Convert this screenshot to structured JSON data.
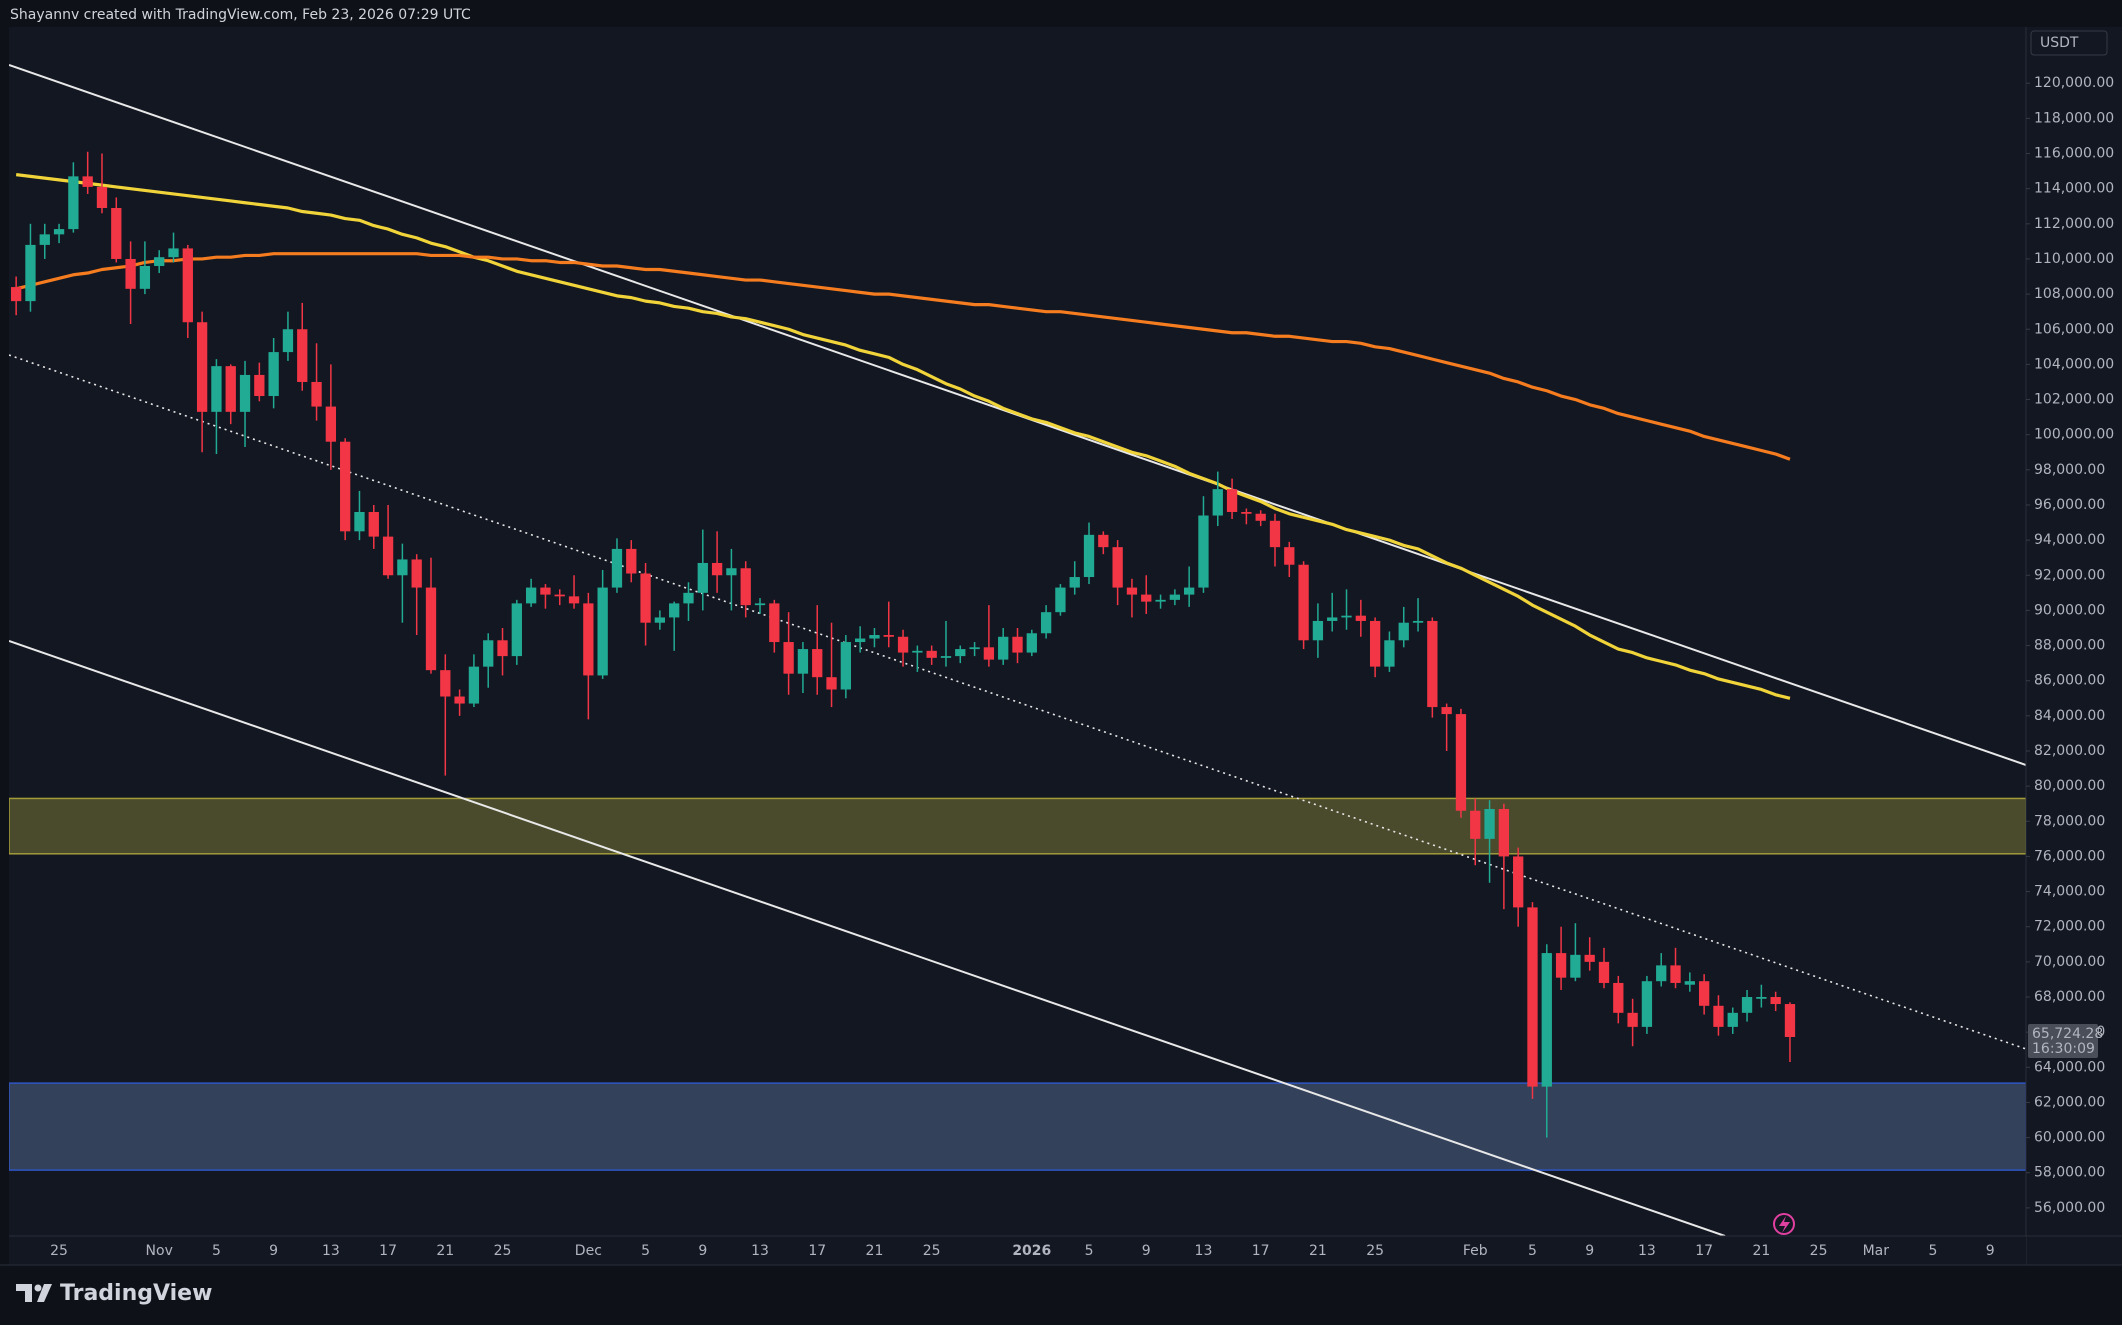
{
  "header": {
    "text": "Shayannv created with TradingView.com, Feb 23, 2026 07:29 UTC"
  },
  "footer": {
    "brand": "TradingView"
  },
  "chart_data": {
    "type": "candlestick",
    "currency": "USDT",
    "up_color": "#22ab94",
    "down_color": "#f23645",
    "grid": false,
    "categories": [
      null,
      null,
      null,
      "25",
      null,
      null,
      null,
      null,
      null,
      null,
      "Nov",
      null,
      null,
      null,
      "5",
      null,
      null,
      null,
      "9",
      null,
      null,
      null,
      "13",
      null,
      null,
      null,
      "17",
      null,
      null,
      null,
      "21",
      null,
      null,
      null,
      "25",
      null,
      null,
      null,
      null,
      null,
      "Dec",
      null,
      null,
      null,
      "5",
      null,
      null,
      null,
      "9",
      null,
      null,
      null,
      "13",
      null,
      null,
      null,
      "17",
      null,
      null,
      null,
      "21",
      null,
      null,
      null,
      "25",
      null,
      null,
      null,
      null,
      null,
      null,
      "2026",
      null,
      null,
      null,
      "5",
      null,
      null,
      null,
      "9",
      null,
      null,
      null,
      "13",
      null,
      null,
      null,
      "17",
      null,
      null,
      null,
      "21",
      null,
      null,
      null,
      "25",
      null,
      null,
      null,
      null,
      null,
      null,
      "Feb",
      null,
      null,
      null,
      "5",
      null,
      null,
      null,
      "9",
      null,
      null,
      null,
      "13",
      null,
      null,
      null,
      "17",
      null,
      null,
      null,
      "21",
      null,
      null,
      null,
      "25",
      null,
      null,
      null,
      "Mar",
      null,
      null,
      null,
      "5",
      null,
      null,
      null,
      "9",
      null,
      null
    ],
    "open": [
      108400,
      107600,
      110800,
      111400,
      111700,
      114700,
      114100,
      112900,
      110000,
      108300,
      109600,
      110100,
      110600,
      106400,
      101300,
      103900,
      101300,
      103400,
      102200,
      104700,
      106000,
      103000,
      101600,
      99600,
      94500,
      95600,
      94200,
      92000,
      92900,
      91300,
      86600,
      85100,
      84700,
      86800,
      88300,
      87400,
      90400,
      91300,
      90900,
      90800,
      90400,
      86300,
      91300,
      93500,
      92100,
      89300,
      89600,
      90400,
      91000,
      92700,
      92000,
      92400,
      90300,
      90400,
      88200,
      86400,
      87800,
      86200,
      85500,
      88200,
      88400,
      88600,
      88500,
      87600,
      87700,
      87300,
      87400,
      87800,
      87900,
      87200,
      88500,
      87600,
      88700,
      89900,
      91300,
      91900,
      94300,
      93600,
      91300,
      90900,
      90500,
      90600,
      90900,
      91300,
      95400,
      96900,
      95600,
      95500,
      95100,
      93600,
      92600,
      88300,
      89400,
      89600,
      89700,
      89400,
      86800,
      88300,
      89300,
      89400,
      84500,
      84100,
      78600,
      77000,
      78700,
      76000,
      73100,
      62900,
      70500,
      69100,
      70400,
      70000,
      68800,
      67100,
      66300,
      68900,
      69800,
      68700,
      68900,
      67500,
      66300,
      67100,
      67900,
      68000,
      67600,
      null,
      null,
      null,
      null,
      null,
      null,
      null,
      null,
      null,
      null,
      null,
      null,
      null,
      null,
      null,
      null
    ],
    "high": [
      109000,
      112000,
      112000,
      112000,
      115500,
      116100,
      116000,
      113500,
      111000,
      111000,
      110500,
      111500,
      110800,
      107000,
      104300,
      104000,
      104200,
      104100,
      105500,
      107000,
      107500,
      105200,
      104000,
      99800,
      96800,
      96000,
      96000,
      93800,
      93200,
      93000,
      87500,
      85500,
      87500,
      88700,
      89000,
      90600,
      91800,
      91500,
      91200,
      92000,
      91000,
      92300,
      94100,
      94000,
      92700,
      90000,
      90500,
      91600,
      94600,
      94500,
      93500,
      92800,
      90700,
      90600,
      89900,
      88200,
      90300,
      89300,
      88600,
      89100,
      89000,
      90500,
      88900,
      88000,
      88000,
      89400,
      88000,
      88200,
      90300,
      89000,
      89000,
      88900,
      90300,
      91500,
      92800,
      95000,
      94500,
      94000,
      91800,
      92000,
      90900,
      91200,
      92500,
      96500,
      97900,
      97500,
      95800,
      95700,
      95500,
      93900,
      92800,
      90400,
      91000,
      91200,
      90600,
      89600,
      88800,
      90200,
      90700,
      89600,
      84700,
      84400,
      79300,
      79200,
      79000,
      76500,
      73400,
      71000,
      72000,
      72200,
      71400,
      70800,
      69200,
      67900,
      69200,
      70500,
      70800,
      69400,
      69300,
      68100,
      67400,
      68400,
      68700,
      68300,
      67700,
      null,
      null,
      null,
      null,
      null,
      null,
      null,
      null,
      null,
      null,
      null,
      null,
      null,
      null,
      null,
      null
    ],
    "low": [
      106800,
      107000,
      110000,
      110900,
      111500,
      113700,
      112600,
      109800,
      106300,
      108000,
      109200,
      109800,
      105500,
      99000,
      98900,
      100600,
      99300,
      101900,
      101500,
      104200,
      102500,
      100800,
      98000,
      94000,
      94000,
      93500,
      91800,
      89300,
      88600,
      86400,
      80600,
      84000,
      84500,
      85600,
      86300,
      86900,
      90200,
      90100,
      90300,
      90100,
      83800,
      86100,
      91000,
      91600,
      88000,
      88900,
      87700,
      89400,
      90000,
      91000,
      90000,
      89600,
      89800,
      87600,
      85200,
      85300,
      85200,
      84500,
      85000,
      87600,
      87900,
      87900,
      86800,
      86500,
      86900,
      86800,
      87000,
      87400,
      86800,
      86900,
      87000,
      87400,
      88400,
      89700,
      90900,
      91500,
      93200,
      90300,
      89600,
      89800,
      90100,
      90300,
      90200,
      91000,
      94800,
      95200,
      94900,
      94800,
      92500,
      91900,
      87800,
      87300,
      88800,
      88900,
      88500,
      86200,
      86500,
      87900,
      88800,
      83900,
      82000,
      78200,
      75500,
      74500,
      73000,
      72000,
      62200,
      60000,
      68400,
      68900,
      69500,
      68500,
      66500,
      65200,
      65900,
      68600,
      68500,
      68300,
      67000,
      65800,
      65900,
      66600,
      67400,
      67200,
      64300,
      null,
      null,
      null,
      null,
      null,
      null,
      null,
      null,
      null,
      null,
      null,
      null,
      null,
      null,
      null,
      null
    ],
    "close": [
      107600,
      110800,
      111400,
      111700,
      114700,
      114100,
      112900,
      110000,
      108300,
      109600,
      110100,
      110600,
      106400,
      101300,
      103900,
      101300,
      103400,
      102200,
      104700,
      106000,
      103000,
      101600,
      99600,
      94500,
      95600,
      94200,
      92000,
      92900,
      91300,
      86600,
      85100,
      84700,
      86800,
      88300,
      87400,
      90400,
      91300,
      90900,
      90800,
      90400,
      86300,
      91300,
      93500,
      92100,
      89300,
      89600,
      90400,
      91000,
      92700,
      92000,
      92400,
      90300,
      90400,
      88200,
      86400,
      87800,
      86200,
      85500,
      88200,
      88400,
      88600,
      88500,
      87600,
      87700,
      87300,
      87400,
      87800,
      87900,
      87200,
      88500,
      87600,
      88700,
      89900,
      91300,
      91900,
      94300,
      93600,
      91300,
      90900,
      90500,
      90600,
      90900,
      91300,
      95400,
      96900,
      95600,
      95500,
      95100,
      93600,
      92600,
      88300,
      89400,
      89600,
      89700,
      89400,
      86800,
      88300,
      89300,
      89400,
      84500,
      84100,
      78600,
      77000,
      78700,
      76000,
      73100,
      62900,
      70500,
      69100,
      70400,
      70000,
      68800,
      67100,
      66300,
      68900,
      69800,
      68800,
      68900,
      67500,
      66300,
      67100,
      68000,
      68000,
      67600,
      65724.28,
      null,
      null,
      null,
      null,
      null,
      null,
      null,
      null,
      null,
      null,
      null,
      null,
      null,
      null,
      null,
      null
    ],
    "overlays": [
      {
        "color": "#f0d43a",
        "values": [
          114800,
          114700,
          114600,
          114500,
          114400,
          114300,
          114200,
          114100,
          114000,
          113900,
          113800,
          113700,
          113600,
          113500,
          113400,
          113300,
          113200,
          113100,
          113000,
          112900,
          112700,
          112600,
          112500,
          112300,
          112200,
          111900,
          111700,
          111400,
          111200,
          110900,
          110700,
          110400,
          110100,
          109900,
          109600,
          109300,
          109100,
          108900,
          108700,
          108500,
          108300,
          108100,
          107900,
          107800,
          107600,
          107500,
          107300,
          107200,
          107000,
          106900,
          106700,
          106600,
          106400,
          106200,
          106000,
          105700,
          105500,
          105300,
          105100,
          104800,
          104600,
          104400,
          104000,
          103700,
          103300,
          102900,
          102600,
          102200,
          101900,
          101500,
          101200,
          100900,
          100700,
          100400,
          100100,
          99900,
          99600,
          99300,
          99000,
          98800,
          98500,
          98200,
          97800,
          97500,
          97200,
          96800,
          96500,
          96200,
          95800,
          95500,
          95300,
          95100,
          94900,
          94600,
          94400,
          94200,
          94000,
          93700,
          93500,
          93100,
          92700,
          92400,
          92000,
          91600,
          91200,
          90800,
          90300,
          89900,
          89500,
          89100,
          88600,
          88200,
          87800,
          87600,
          87300,
          87100,
          86900,
          86600,
          86400,
          86100,
          85900,
          85700,
          85500,
          85200,
          85000,
          null,
          null,
          null,
          null,
          null,
          null,
          null,
          null,
          null,
          null,
          null,
          null,
          null,
          null,
          null,
          null
        ]
      },
      {
        "color": "#f57c1f",
        "values": [
          108300,
          108500,
          108700,
          108900,
          109100,
          109200,
          109400,
          109500,
          109600,
          109800,
          109900,
          109900,
          110000,
          110000,
          110100,
          110100,
          110200,
          110200,
          110300,
          110300,
          110300,
          110300,
          110300,
          110300,
          110300,
          110300,
          110300,
          110300,
          110300,
          110200,
          110200,
          110200,
          110100,
          110100,
          110000,
          110000,
          109900,
          109900,
          109800,
          109800,
          109700,
          109600,
          109600,
          109500,
          109400,
          109400,
          109300,
          109200,
          109100,
          109000,
          108900,
          108800,
          108800,
          108700,
          108600,
          108500,
          108400,
          108300,
          108200,
          108100,
          108000,
          108000,
          107900,
          107800,
          107700,
          107600,
          107500,
          107400,
          107400,
          107300,
          107200,
          107100,
          107000,
          107000,
          106900,
          106800,
          106700,
          106600,
          106500,
          106400,
          106300,
          106200,
          106100,
          106000,
          105900,
          105800,
          105800,
          105700,
          105600,
          105600,
          105500,
          105400,
          105300,
          105300,
          105200,
          105000,
          104900,
          104700,
          104500,
          104300,
          104100,
          103900,
          103700,
          103500,
          103200,
          103000,
          102700,
          102500,
          102200,
          102000,
          101700,
          101500,
          101200,
          101000,
          100800,
          100600,
          100400,
          100200,
          99900,
          99700,
          99500,
          99300,
          99100,
          98900,
          98600,
          null,
          null,
          null,
          null,
          null,
          null,
          null,
          null,
          null,
          null,
          null,
          null,
          null,
          null,
          null,
          null
        ]
      }
    ],
    "zones": [
      {
        "low": 76150,
        "high": 79300,
        "color": "#4a4a2c",
        "border": "#a39b3a"
      },
      {
        "low": 58150,
        "high": 63100,
        "color": "#34415b",
        "border": "#2f55c4"
      }
    ],
    "last_price": {
      "value": 65724.28,
      "label": "65,724.28"
    },
    "countdown": "16:30:09",
    "ylim": [
      54400,
      123200
    ],
    "yticks": [
      {
        "value": 56000,
        "label": "56,000.00"
      },
      {
        "value": 58000,
        "label": "58,000.00"
      },
      {
        "value": 60000,
        "label": "60,000.00"
      },
      {
        "value": 62000,
        "label": "62,000.00"
      },
      {
        "value": 64000,
        "label": "64,000.00"
      },
      {
        "value": 66000,
        "label": "66,000.00"
      },
      {
        "value": 68000,
        "label": "68,000.00"
      },
      {
        "value": 70000,
        "label": "70,000.00"
      },
      {
        "value": 72000,
        "label": "72,000.00"
      },
      {
        "value": 74000,
        "label": "74,000.00"
      },
      {
        "value": 76000,
        "label": "76,000.00"
      },
      {
        "value": 78000,
        "label": "78,000.00"
      },
      {
        "value": 80000,
        "label": "80,000.00"
      },
      {
        "value": 82000,
        "label": "82,000.00"
      },
      {
        "value": 84000,
        "label": "84,000.00"
      },
      {
        "value": 86000,
        "label": "86,000.00"
      },
      {
        "value": 88000,
        "label": "88,000.00"
      },
      {
        "value": 90000,
        "label": "90,000.00"
      },
      {
        "value": 92000,
        "label": "92,000.00"
      },
      {
        "value": 94000,
        "label": "94,000.00"
      },
      {
        "value": 96000,
        "label": "96,000.00"
      },
      {
        "value": 98000,
        "label": "98,000.00"
      },
      {
        "value": 100000,
        "label": "100,000.00"
      },
      {
        "value": 102000,
        "label": "102,000.00"
      },
      {
        "value": 104000,
        "label": "104,000.00"
      },
      {
        "value": 106000,
        "label": "106,000.00"
      },
      {
        "value": 108000,
        "label": "108,000.00"
      },
      {
        "value": 110000,
        "label": "110,000.00"
      },
      {
        "value": 112000,
        "label": "112,000.00"
      },
      {
        "value": 114000,
        "label": "114,000.00"
      },
      {
        "value": 116000,
        "label": "116,000.00"
      },
      {
        "value": 118000,
        "label": "118,000.00"
      },
      {
        "value": 120000,
        "label": "120,000.00"
      }
    ]
  }
}
